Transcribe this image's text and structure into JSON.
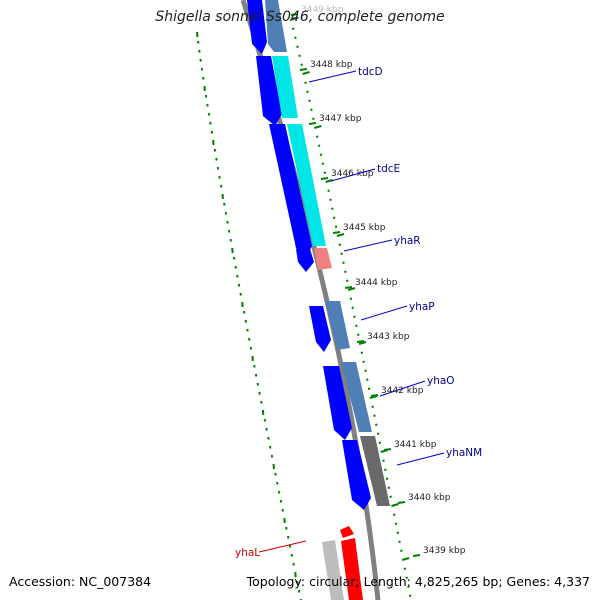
{
  "title": "Shigella sonnei Ss046, complete genome",
  "accession": "Accession: NC_007384",
  "topology": "Topology: circular; Length: 4,825,265 bp; Genes: 4,337",
  "colors": {
    "backbone": "#808080",
    "cds_forward": "#0000ff",
    "cds_reverse": "#4f7fb5",
    "rna": "#00e6e6",
    "pseudo": "#f08080",
    "highlight": "#ff0000",
    "tick": "#008000",
    "gene_label": "#00008b"
  },
  "tick_labels": [
    {
      "label": "3449 kbp",
      "partial": true
    },
    {
      "label": "3448 kbp"
    },
    {
      "label": "3447 kbp"
    },
    {
      "label": "3446 kbp"
    },
    {
      "label": "3445 kbp"
    },
    {
      "label": "3444 kbp"
    },
    {
      "label": "3443 kbp"
    },
    {
      "label": "3442 kbp"
    },
    {
      "label": "3441 kbp"
    },
    {
      "label": "3440 kbp"
    },
    {
      "label": "3439 kbp"
    }
  ],
  "gene_labels": [
    {
      "name": "tdcD",
      "color": "#00008b"
    },
    {
      "name": "tdcE",
      "color": "#00008b"
    },
    {
      "name": "yhaR",
      "color": "#00008b"
    },
    {
      "name": "yhaP",
      "color": "#00008b"
    },
    {
      "name": "yhaO",
      "color": "#00008b"
    },
    {
      "name": "yhaNM",
      "color": "#00008b"
    },
    {
      "name": "yhaL",
      "color": "#cc0000"
    }
  ]
}
